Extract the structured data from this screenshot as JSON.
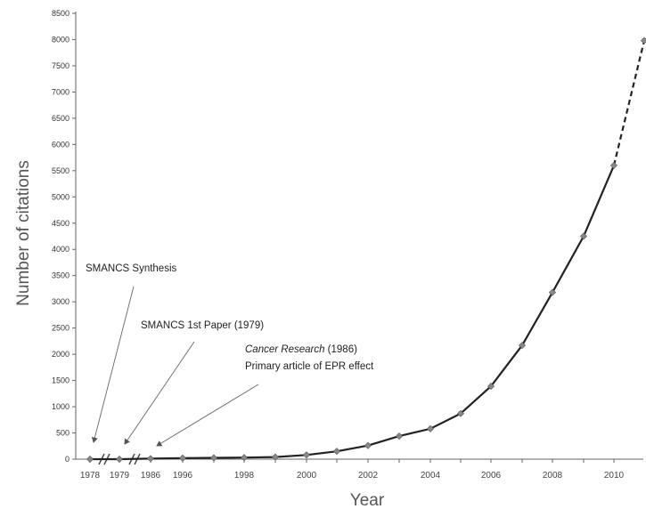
{
  "chart_data": {
    "type": "line",
    "title": "",
    "xlabel": "Year",
    "ylabel": "Number of citations",
    "ylim": [
      0,
      8500
    ],
    "y_ticks": [
      0,
      500,
      1000,
      1500,
      2000,
      2500,
      3000,
      3500,
      4000,
      4500,
      5000,
      5500,
      6000,
      6500,
      7000,
      7500,
      8000,
      8500
    ],
    "x_categories": [
      "1978",
      "1979",
      "1986",
      "1996",
      "1997",
      "1998",
      "1999",
      "2000",
      "2001",
      "2002",
      "2003",
      "2004",
      "2005",
      "2006",
      "2007",
      "2008",
      "2009",
      "2010",
      "2011"
    ],
    "x_tick_labels": [
      "1978",
      "1979",
      "1986",
      "1996",
      "1998",
      "2000",
      "2002",
      "2004",
      "2006",
      "2008",
      "2010"
    ],
    "axis_breaks": [
      "1978-1979",
      "1979-1986"
    ],
    "series": [
      {
        "values": [
          0,
          0,
          10,
          20,
          25,
          30,
          40,
          80,
          150,
          260,
          440,
          580,
          870,
          1390,
          2170,
          3180,
          4250,
          5600,
          7980
        ],
        "projected_from": "2010",
        "color": "#222222",
        "marker_color": "#888888"
      }
    ],
    "annotations": [
      {
        "lines": [
          "SMANCS Synthesis"
        ],
        "italic_prefix": "",
        "points_to": "1978"
      },
      {
        "lines": [
          "SMANCS 1st Paper (1979)"
        ],
        "italic_prefix": "",
        "points_to": "1979"
      },
      {
        "italic_prefix": "Cancer Research",
        "lines": [
          " (1986)",
          "Primary article of EPR effect"
        ],
        "points_to": "1986"
      }
    ],
    "grid": false,
    "legend": "none"
  }
}
